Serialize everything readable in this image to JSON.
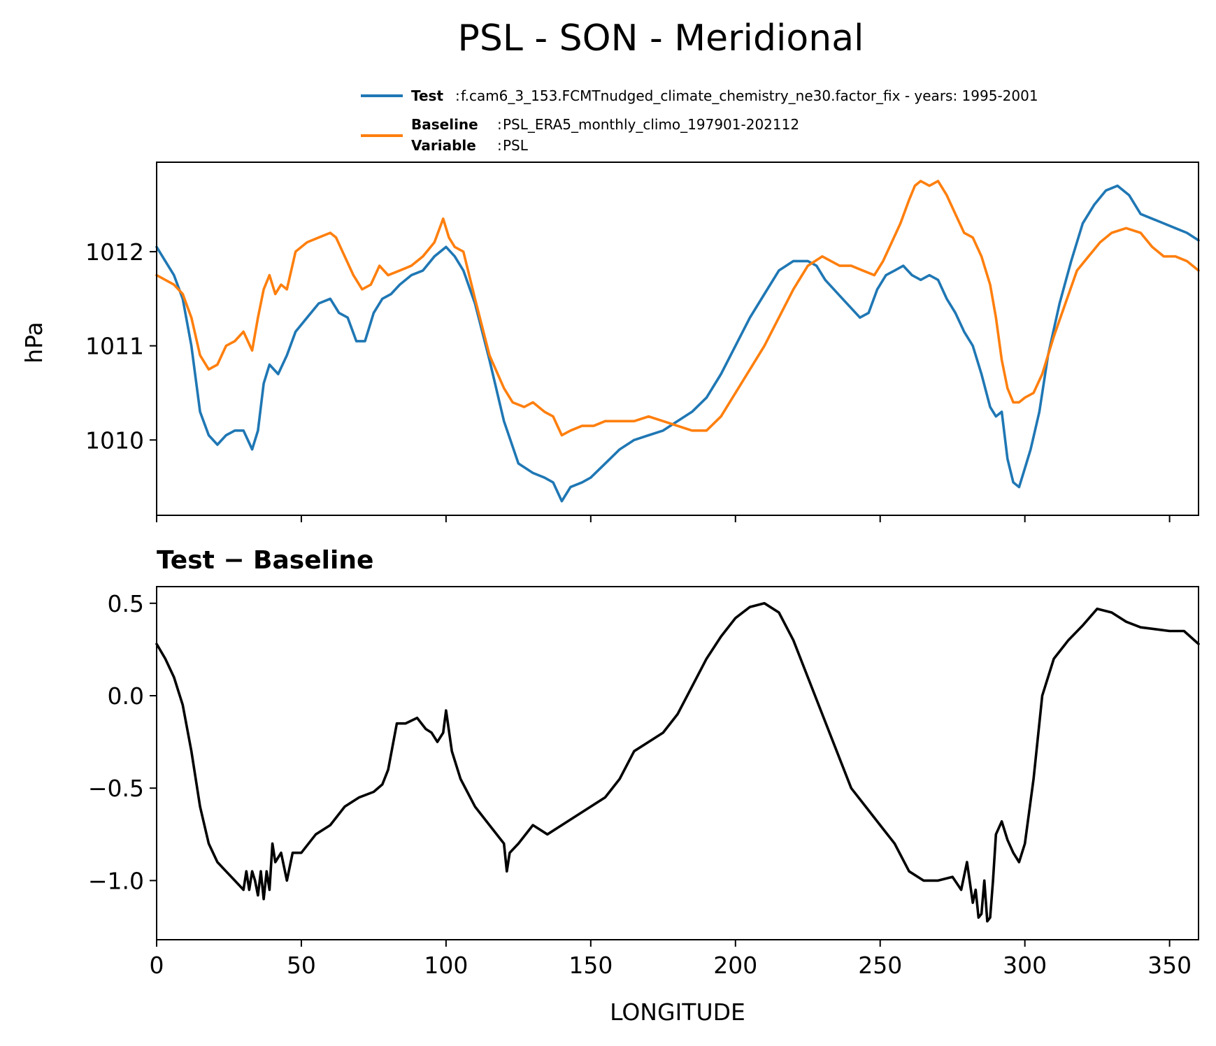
{
  "chart_data": [
    {
      "type": "line",
      "title": "PSL - SON - Meridional",
      "xlabel": "",
      "ylabel": "hPa",
      "xlim": [
        0,
        360
      ],
      "ylim": [
        1009.2,
        1012.95
      ],
      "xticks": [
        0,
        50,
        100,
        150,
        200,
        250,
        300,
        350
      ],
      "yticks": [
        1010,
        1011,
        1012
      ],
      "ytick_labels": [
        "1010",
        "1011",
        "1012"
      ],
      "legend": {
        "location": "above-plot",
        "entries": [
          {
            "key": "Test",
            "text": "f.cam6_3_153.FCMTnudged_climate_chemistry_ne30.factor_fix - years: 1995-2001",
            "color": "#1f77b4"
          },
          {
            "key": "Baseline",
            "text": "PSL_ERA5_monthly_climo_197901-202112",
            "color": "#ff7f0e"
          },
          {
            "key": "Variable",
            "text": "PSL"
          }
        ]
      },
      "series": [
        {
          "name": "Test",
          "color": "#1f77b4",
          "x": [
            0,
            3,
            6,
            9,
            12,
            15,
            18,
            21,
            24,
            27,
            30,
            33,
            35,
            37,
            39,
            42,
            45,
            48,
            52,
            56,
            60,
            63,
            66,
            69,
            72,
            75,
            78,
            81,
            84,
            88,
            92,
            96,
            100,
            103,
            106,
            110,
            115,
            120,
            125,
            130,
            134,
            137,
            140,
            143,
            147,
            150,
            155,
            160,
            165,
            170,
            175,
            180,
            185,
            190,
            195,
            200,
            205,
            210,
            215,
            220,
            225,
            228,
            231,
            234,
            237,
            240,
            243,
            246,
            249,
            252,
            255,
            258,
            261,
            264,
            267,
            270,
            273,
            276,
            279,
            282,
            285,
            288,
            290,
            292,
            294,
            296,
            298,
            300,
            302,
            305,
            308,
            312,
            316,
            320,
            324,
            328,
            332,
            336,
            340,
            344,
            348,
            352,
            356,
            360
          ],
          "values": [
            1012.05,
            1011.9,
            1011.75,
            1011.5,
            1011.0,
            1010.3,
            1010.05,
            1009.95,
            1010.05,
            1010.1,
            1010.1,
            1009.9,
            1010.1,
            1010.6,
            1010.8,
            1010.7,
            1010.9,
            1011.15,
            1011.3,
            1011.45,
            1011.5,
            1011.35,
            1011.3,
            1011.05,
            1011.05,
            1011.35,
            1011.5,
            1011.55,
            1011.65,
            1011.75,
            1011.8,
            1011.95,
            1012.05,
            1011.95,
            1011.8,
            1011.45,
            1010.85,
            1010.2,
            1009.75,
            1009.65,
            1009.6,
            1009.55,
            1009.35,
            1009.5,
            1009.55,
            1009.6,
            1009.75,
            1009.9,
            1010.0,
            1010.05,
            1010.1,
            1010.2,
            1010.3,
            1010.45,
            1010.7,
            1011.0,
            1011.3,
            1011.55,
            1011.8,
            1011.9,
            1011.9,
            1011.85,
            1011.7,
            1011.6,
            1011.5,
            1011.4,
            1011.3,
            1011.35,
            1011.6,
            1011.75,
            1011.8,
            1011.85,
            1011.75,
            1011.7,
            1011.75,
            1011.7,
            1011.5,
            1011.35,
            1011.15,
            1011.0,
            1010.7,
            1010.35,
            1010.25,
            1010.3,
            1009.8,
            1009.55,
            1009.5,
            1009.7,
            1009.9,
            1010.3,
            1010.9,
            1011.45,
            1011.9,
            1012.3,
            1012.5,
            1012.65,
            1012.7,
            1012.6,
            1012.4,
            1012.35,
            1012.3,
            1012.25,
            1012.2,
            1012.12
          ]
        },
        {
          "name": "Baseline",
          "color": "#ff7f0e",
          "x": [
            0,
            3,
            6,
            9,
            12,
            15,
            18,
            21,
            24,
            27,
            30,
            33,
            35,
            37,
            39,
            41,
            43,
            45,
            48,
            52,
            56,
            60,
            62,
            65,
            68,
            71,
            74,
            77,
            80,
            84,
            88,
            92,
            96,
            99,
            101,
            103,
            106,
            110,
            115,
            120,
            123,
            127,
            130,
            134,
            137,
            140,
            143,
            147,
            151,
            155,
            160,
            165,
            170,
            175,
            180,
            185,
            190,
            195,
            200,
            205,
            210,
            215,
            220,
            225,
            230,
            233,
            236,
            240,
            244,
            248,
            251,
            254,
            257,
            260,
            262,
            264,
            267,
            270,
            273,
            276,
            279,
            282,
            285,
            288,
            290,
            292,
            294,
            296,
            298,
            300,
            303,
            306,
            310,
            314,
            318,
            322,
            326,
            330,
            335,
            340,
            344,
            348,
            352,
            356,
            360
          ],
          "values": [
            1011.75,
            1011.7,
            1011.65,
            1011.55,
            1011.3,
            1010.9,
            1010.75,
            1010.8,
            1011.0,
            1011.05,
            1011.15,
            1010.95,
            1011.3,
            1011.6,
            1011.75,
            1011.55,
            1011.65,
            1011.6,
            1012.0,
            1012.1,
            1012.15,
            1012.2,
            1012.15,
            1011.95,
            1011.75,
            1011.6,
            1011.65,
            1011.85,
            1011.75,
            1011.8,
            1011.85,
            1011.95,
            1012.1,
            1012.35,
            1012.15,
            1012.05,
            1012.0,
            1011.5,
            1010.9,
            1010.55,
            1010.4,
            1010.35,
            1010.4,
            1010.3,
            1010.25,
            1010.05,
            1010.1,
            1010.15,
            1010.15,
            1010.2,
            1010.2,
            1010.2,
            1010.25,
            1010.2,
            1010.15,
            1010.1,
            1010.1,
            1010.25,
            1010.5,
            1010.75,
            1011.0,
            1011.3,
            1011.6,
            1011.85,
            1011.95,
            1011.9,
            1011.85,
            1011.85,
            1011.8,
            1011.75,
            1011.9,
            1012.1,
            1012.3,
            1012.55,
            1012.7,
            1012.75,
            1012.7,
            1012.75,
            1012.6,
            1012.4,
            1012.2,
            1012.15,
            1011.95,
            1011.65,
            1011.3,
            1010.85,
            1010.55,
            1010.4,
            1010.4,
            1010.45,
            1010.5,
            1010.7,
            1011.1,
            1011.45,
            1011.8,
            1011.95,
            1012.1,
            1012.2,
            1012.25,
            1012.2,
            1012.05,
            1011.95,
            1011.95,
            1011.9,
            1011.8
          ]
        }
      ]
    },
    {
      "type": "line",
      "title": "Test − Baseline",
      "xlabel": "LONGITUDE",
      "ylabel": "",
      "xlim": [
        0,
        360
      ],
      "ylim": [
        -1.32,
        0.59
      ],
      "xticks": [
        0,
        50,
        100,
        150,
        200,
        250,
        300,
        350
      ],
      "xtick_labels": [
        "0",
        "50",
        "100",
        "150",
        "200",
        "250",
        "300",
        "350"
      ],
      "yticks": [
        -1.0,
        -0.5,
        0.0,
        0.5
      ],
      "ytick_labels": [
        "−1.0",
        "−0.5",
        "0.0",
        "0.5"
      ],
      "series": [
        {
          "name": "Test − Baseline",
          "color": "#000000",
          "x": [
            0,
            3,
            6,
            9,
            12,
            15,
            18,
            21,
            24,
            27,
            30,
            31,
            32,
            33,
            34,
            35,
            36,
            37,
            38,
            39,
            40,
            41,
            43,
            45,
            47,
            50,
            55,
            60,
            65,
            70,
            75,
            78,
            80,
            83,
            86,
            90,
            93,
            95,
            97,
            99,
            100,
            102,
            105,
            110,
            115,
            120,
            121,
            122,
            125,
            130,
            135,
            140,
            145,
            150,
            155,
            160,
            165,
            170,
            175,
            180,
            185,
            190,
            195,
            200,
            205,
            210,
            215,
            220,
            225,
            230,
            235,
            240,
            245,
            250,
            255,
            260,
            265,
            270,
            275,
            278,
            280,
            282,
            283,
            284,
            285,
            286,
            287,
            288,
            289,
            290,
            292,
            294,
            296,
            298,
            300,
            303,
            306,
            310,
            315,
            320,
            325,
            330,
            335,
            340,
            345,
            350,
            355,
            360
          ],
          "values": [
            0.28,
            0.2,
            0.1,
            -0.05,
            -0.3,
            -0.6,
            -0.8,
            -0.9,
            -0.95,
            -1.0,
            -1.05,
            -0.95,
            -1.05,
            -0.95,
            -1.0,
            -1.08,
            -0.95,
            -1.1,
            -0.95,
            -1.05,
            -0.8,
            -0.9,
            -0.85,
            -1.0,
            -0.85,
            -0.85,
            -0.75,
            -0.7,
            -0.6,
            -0.55,
            -0.52,
            -0.48,
            -0.4,
            -0.15,
            -0.15,
            -0.12,
            -0.18,
            -0.2,
            -0.25,
            -0.2,
            -0.08,
            -0.3,
            -0.45,
            -0.6,
            -0.7,
            -0.8,
            -0.95,
            -0.85,
            -0.8,
            -0.7,
            -0.75,
            -0.7,
            -0.65,
            -0.6,
            -0.55,
            -0.45,
            -0.3,
            -0.25,
            -0.2,
            -0.1,
            0.05,
            0.2,
            0.32,
            0.42,
            0.48,
            0.5,
            0.45,
            0.3,
            0.1,
            -0.1,
            -0.3,
            -0.5,
            -0.6,
            -0.7,
            -0.8,
            -0.95,
            -1.0,
            -1.0,
            -0.98,
            -1.05,
            -0.9,
            -1.12,
            -1.05,
            -1.2,
            -1.18,
            -1.0,
            -1.22,
            -1.2,
            -1.0,
            -0.75,
            -0.68,
            -0.78,
            -0.85,
            -0.9,
            -0.8,
            -0.45,
            0.0,
            0.2,
            0.3,
            0.38,
            0.47,
            0.45,
            0.4,
            0.37,
            0.36,
            0.35,
            0.35,
            0.28
          ]
        }
      ]
    }
  ]
}
